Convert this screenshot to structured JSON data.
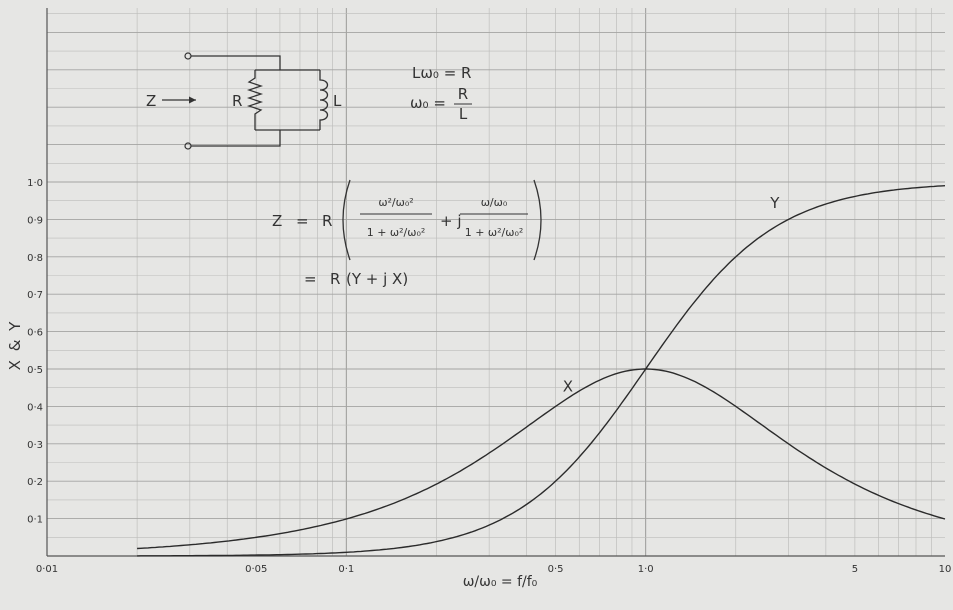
{
  "chart_data": {
    "type": "line",
    "title": "",
    "xlabel": "ω/ω₀ = f/f₀",
    "ylabel": "X & Y",
    "x_scale": "log",
    "xlim": [
      0.01,
      10
    ],
    "ylim": [
      0,
      1.05
    ],
    "x_tick_labels": [
      "0·01",
      "0·05",
      "0·1",
      "0·5",
      "1·0",
      "5",
      "10"
    ],
    "x_tick_values": [
      0.01,
      0.05,
      0.1,
      0.5,
      1,
      5,
      10
    ],
    "y_tick_labels": [
      "0·1",
      "0·2",
      "0·3",
      "0·4",
      "0·5",
      "0·6",
      "0·7",
      "0·8",
      "0·9",
      "1·0"
    ],
    "y_tick_values": [
      0.1,
      0.2,
      0.3,
      0.4,
      0.5,
      0.6,
      0.7,
      0.8,
      0.9,
      1.0
    ],
    "grid": true,
    "series": [
      {
        "name": "Y",
        "x": [
          0.02,
          0.03,
          0.05,
          0.1,
          0.2,
          0.3,
          0.5,
          0.7,
          1,
          1.5,
          2,
          3,
          5,
          7,
          10
        ],
        "y": [
          0.0004,
          0.0009,
          0.0025,
          0.0099,
          0.0385,
          0.0826,
          0.2,
          0.329,
          0.5,
          0.692,
          0.8,
          0.9,
          0.962,
          0.98,
          0.99
        ]
      },
      {
        "name": "X",
        "x": [
          0.02,
          0.03,
          0.05,
          0.1,
          0.2,
          0.3,
          0.5,
          0.7,
          1,
          1.5,
          2,
          3,
          5,
          7,
          10
        ],
        "y": [
          0.02,
          0.03,
          0.0499,
          0.099,
          0.192,
          0.275,
          0.4,
          0.47,
          0.5,
          0.462,
          0.4,
          0.3,
          0.192,
          0.14,
          0.099
        ]
      }
    ],
    "annotations": [
      {
        "text": "Y",
        "x": 2.7,
        "y": 0.93
      },
      {
        "text": "X",
        "x": 0.55,
        "y": 0.44
      }
    ]
  },
  "circuit": {
    "z_label": "Z",
    "r_label": "R",
    "l_label": "L"
  },
  "relations": {
    "line1": "Lω₀ = R",
    "line2_lhs": "ω₀ =",
    "line2_num": "R",
    "line2_den": "L"
  },
  "formula": {
    "z": "Z",
    "eq1": "=",
    "r1": "R",
    "num1": "ω²/ω₀²",
    "den1": "1 + ω²/ω₀²",
    "plus_j": "+ j",
    "num2": "ω/ω₀",
    "den2": "1 + ω²/ω₀²",
    "eq2": "=",
    "r2": "R",
    "yjx": "(Y + j X)"
  }
}
